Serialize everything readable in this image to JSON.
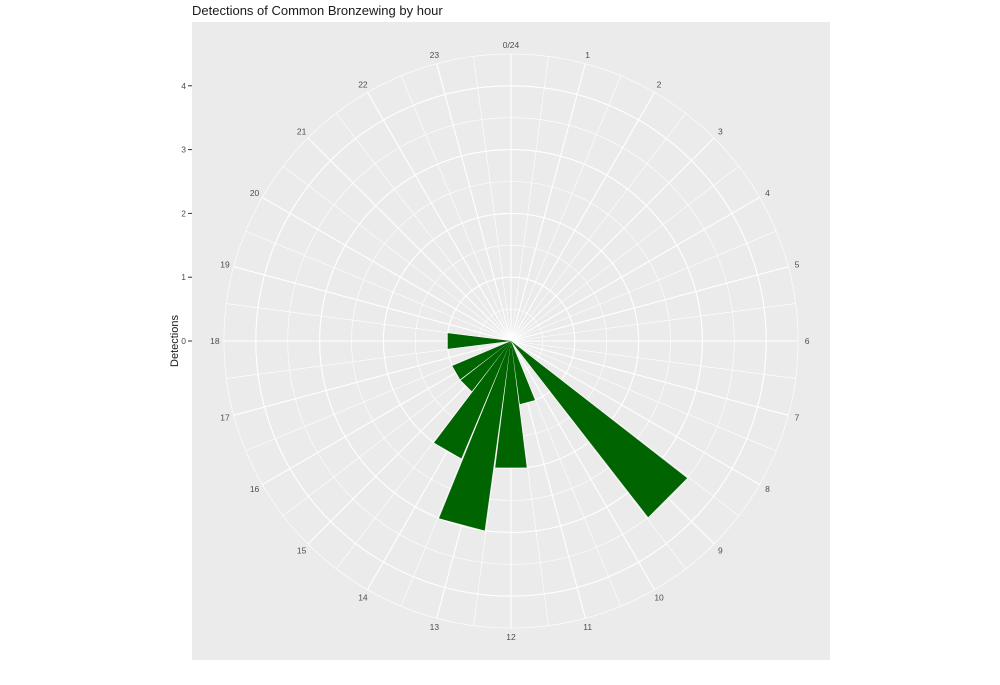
{
  "chart_data": {
    "type": "bar",
    "coord": "polar",
    "title": "Detections of Common Bronzewing by hour",
    "ylabel": "Detections",
    "xlabel": "",
    "categories": [
      "0/24",
      "1",
      "2",
      "3",
      "4",
      "5",
      "6",
      "7",
      "8",
      "9",
      "10",
      "11",
      "12",
      "13",
      "14",
      "15",
      "16",
      "17",
      "18",
      "19",
      "20",
      "21",
      "22",
      "23"
    ],
    "values": [
      0,
      0,
      0,
      0,
      0,
      0,
      0,
      0,
      0,
      3.5,
      0,
      1,
      2,
      3,
      2,
      1,
      1,
      0,
      1,
      0,
      0,
      0,
      0,
      0
    ],
    "yticks": [
      "0",
      "1",
      "2",
      "3",
      "4"
    ],
    "ylim": [
      0,
      4.5
    ],
    "theme": {
      "panel_background": "#ebebeb",
      "grid_color": "#ffffff",
      "bar_color": "#006400",
      "text_color": "#1a1a1a",
      "tick_color": "#4d4d4d"
    }
  }
}
